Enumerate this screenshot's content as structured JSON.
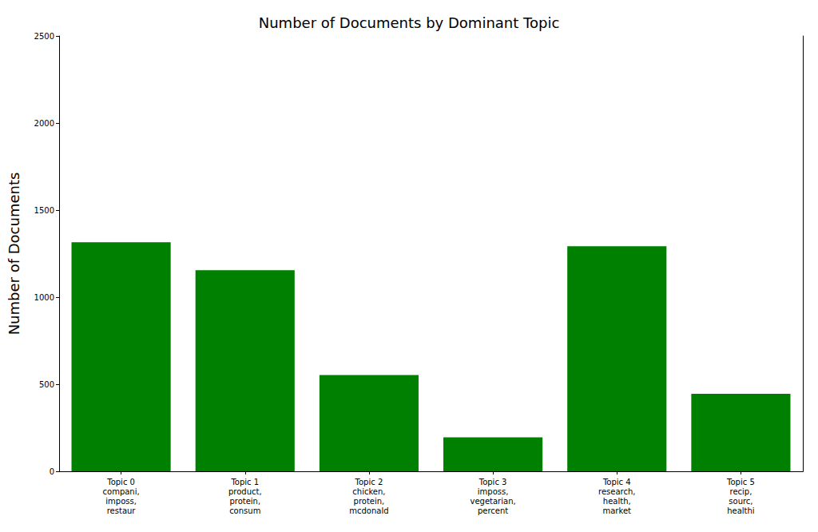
{
  "chart_data": {
    "type": "bar",
    "title": "Number of Documents by Dominant Topic",
    "y_label": "Number of Documents",
    "categories": [
      "Topic 0\ncompani,\nimposs,\nrestaur",
      "Topic 1\nproduct,\nprotein,\nconsum",
      "Topic 2\nchicken,\nprotein,\nmcdonald",
      "Topic 3\nimposs,\nvegetarian,\npercent",
      "Topic 4\nresearch,\nhealth,\nmarket",
      "Topic 5\nrecip,\nsourc,\nhealthi"
    ],
    "values": [
      1315,
      1155,
      553,
      195,
      1293,
      445
    ],
    "color": "#008000",
    "ylim": [
      0,
      2500
    ],
    "yticks": [
      0,
      500,
      1000,
      1500,
      2000,
      2500
    ],
    "grid": false
  }
}
